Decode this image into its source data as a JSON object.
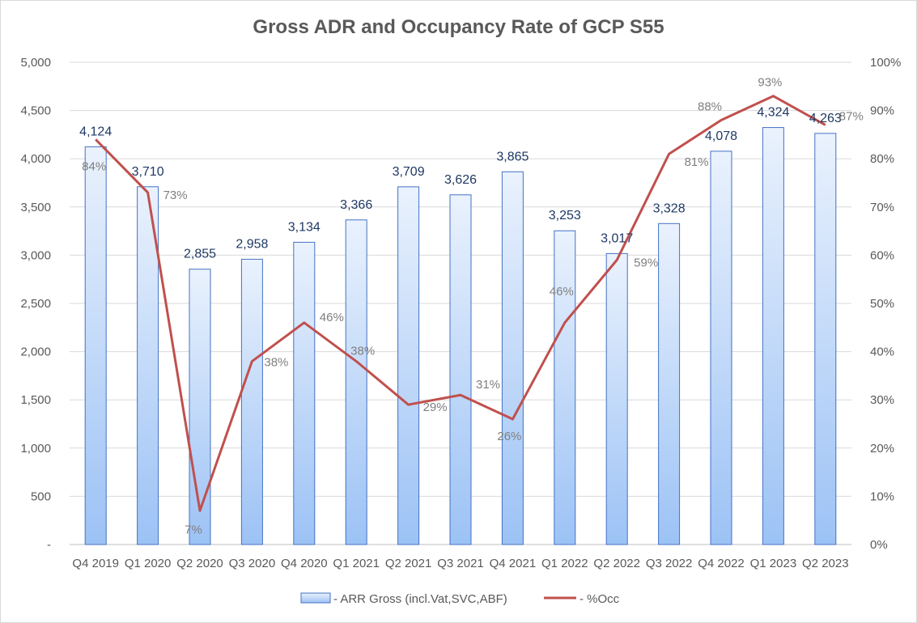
{
  "title": "Gross ADR and Occupancy Rate of GCP S55",
  "chart_data": {
    "type": "bar",
    "categories": [
      "Q4 2019",
      "Q1 2020",
      "Q2 2020",
      "Q3 2020",
      "Q4 2020",
      "Q1 2021",
      "Q2 2021",
      "Q3 2021",
      "Q4 2021",
      "Q1 2022",
      "Q2 2022",
      "Q3 2022",
      "Q4 2022",
      "Q1 2023",
      "Q2 2023"
    ],
    "series": [
      {
        "name": "- ARR Gross (incl.Vat,SVC,ABF)",
        "type": "bar",
        "axis": "left",
        "values": [
          4124,
          3710,
          2855,
          2958,
          3134,
          3366,
          3709,
          3626,
          3865,
          3253,
          3017,
          3328,
          4078,
          4324,
          4263
        ],
        "labels": [
          "4,124",
          "3,710",
          "2,855",
          "2,958",
          "3,134",
          "3,366",
          "3,709",
          "3,626",
          "3,865",
          "3,253",
          "3,017",
          "3,328",
          "4,078",
          "4,324",
          "4,263"
        ]
      },
      {
        "name": "- %Occ",
        "type": "line",
        "axis": "right",
        "values": [
          84,
          73,
          7,
          38,
          46,
          38,
          29,
          31,
          26,
          46,
          59,
          81,
          88,
          93,
          87
        ],
        "labels": [
          "84%",
          "73%",
          "7%",
          "38%",
          "46%",
          "38%",
          "29%",
          "31%",
          "26%",
          "46%",
          "59%",
          "81%",
          "88%",
          "93%",
          "87%"
        ]
      }
    ],
    "y_left": {
      "min": 0,
      "max": 5000,
      "ticks": [
        "-",
        "500",
        "1,000",
        "1,500",
        "2,000",
        "2,500",
        "3,000",
        "3,500",
        "4,000",
        "4,500",
        "5,000"
      ]
    },
    "y_right": {
      "min": 0,
      "max": 100,
      "ticks": [
        "0%",
        "10%",
        "20%",
        "30%",
        "40%",
        "50%",
        "60%",
        "70%",
        "80%",
        "90%",
        "100%"
      ]
    },
    "grid": true,
    "legend_position": "bottom",
    "colors": {
      "bar_top": "#eaf2fd",
      "bar_bottom": "#9cc2f5",
      "bar_stroke": "#4472c4",
      "line": "#c0504d",
      "grid": "#d9d9d9",
      "bar_label": "#1f3864",
      "line_label": "#7f7f7f"
    }
  }
}
